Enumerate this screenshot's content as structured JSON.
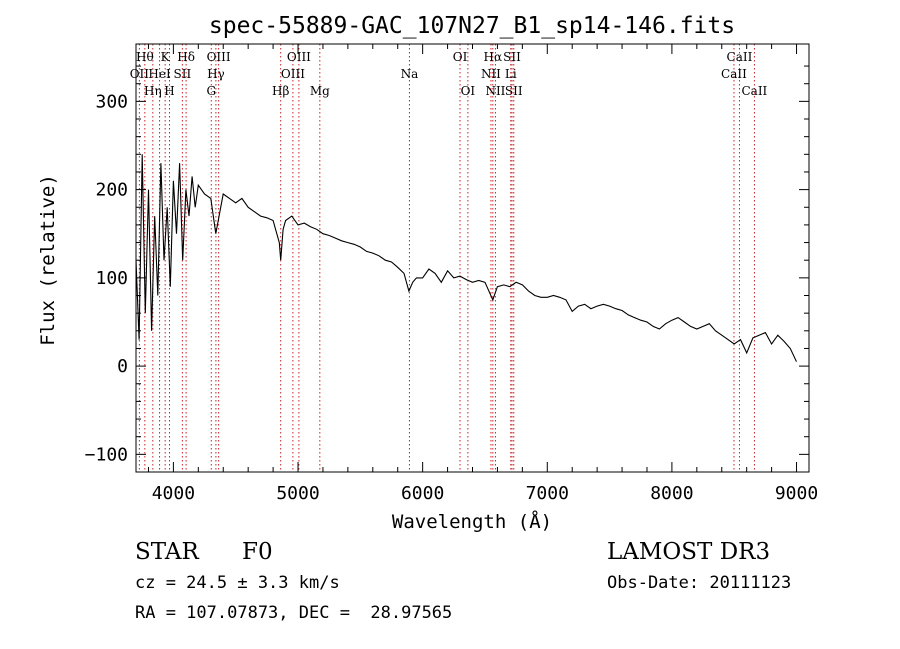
{
  "chart_data": {
    "type": "line",
    "title": "spec-55889-GAC_107N27_B1_sp14-146.fits",
    "xlabel": "Wavelength (Å)",
    "ylabel": "Flux (relative)",
    "xlim": [
      3700,
      9100
    ],
    "ylim": [
      -120,
      365
    ],
    "xticks": [
      4000,
      5000,
      6000,
      7000,
      8000,
      9000
    ],
    "yticks": [
      -100,
      0,
      100,
      200,
      300
    ],
    "grid": false,
    "line_color": "#000000",
    "marker_color": "#cc2222",
    "series": [
      {
        "x": [
          3700,
          3725,
          3750,
          3775,
          3800,
          3825,
          3850,
          3875,
          3900,
          3925,
          3950,
          3975,
          4000,
          4025,
          4050,
          4075,
          4100,
          4125,
          4150,
          4175,
          4200,
          4250,
          4300,
          4340,
          4400,
          4450,
          4500,
          4550,
          4600,
          4650,
          4700,
          4750,
          4800,
          4850,
          4861,
          4880,
          4900,
          4950,
          5000,
          5050,
          5100,
          5150,
          5200,
          5250,
          5300,
          5350,
          5400,
          5450,
          5500,
          5550,
          5600,
          5650,
          5700,
          5750,
          5800,
          5850,
          5890,
          5920,
          5950,
          6000,
          6050,
          6100,
          6150,
          6200,
          6250,
          6300,
          6350,
          6400,
          6450,
          6500,
          6563,
          6600,
          6650,
          6700,
          6750,
          6800,
          6850,
          6900,
          6950,
          7000,
          7050,
          7100,
          7150,
          7200,
          7250,
          7300,
          7350,
          7400,
          7450,
          7500,
          7550,
          7600,
          7650,
          7700,
          7750,
          7800,
          7850,
          7900,
          7950,
          8000,
          8050,
          8100,
          8150,
          8200,
          8250,
          8300,
          8350,
          8400,
          8450,
          8500,
          8550,
          8600,
          8650,
          8700,
          8750,
          8800,
          8850,
          8900,
          8950,
          9000
        ],
        "y": [
          120,
          30,
          240,
          60,
          200,
          40,
          170,
          80,
          230,
          120,
          180,
          90,
          210,
          150,
          230,
          120,
          200,
          170,
          215,
          180,
          205,
          195,
          190,
          150,
          195,
          190,
          185,
          190,
          180,
          175,
          170,
          168,
          165,
          140,
          120,
          155,
          165,
          170,
          160,
          162,
          158,
          155,
          150,
          148,
          145,
          142,
          140,
          138,
          135,
          130,
          128,
          125,
          120,
          118,
          112,
          105,
          85,
          95,
          100,
          100,
          110,
          105,
          95,
          108,
          100,
          102,
          98,
          95,
          97,
          95,
          75,
          90,
          92,
          90,
          95,
          92,
          85,
          80,
          78,
          78,
          80,
          78,
          75,
          62,
          68,
          70,
          65,
          68,
          70,
          68,
          65,
          63,
          58,
          55,
          52,
          50,
          45,
          42,
          48,
          52,
          55,
          50,
          45,
          42,
          45,
          48,
          40,
          35,
          30,
          25,
          30,
          15,
          32,
          35,
          38,
          25,
          35,
          28,
          20,
          5
        ]
      }
    ],
    "lines": [
      {
        "label": "OII",
        "x": 3727,
        "row": 1
      },
      {
        "label": "Hθ",
        "x": 3771,
        "row": 0
      },
      {
        "label": "Hη",
        "x": 3835,
        "row": 2
      },
      {
        "label": "HeI",
        "x": 3889,
        "row": 1
      },
      {
        "label": "K",
        "x": 3934,
        "row": 0
      },
      {
        "label": "H",
        "x": 3969,
        "row": 2
      },
      {
        "label": "Hδ",
        "x": 4102,
        "row": 0
      },
      {
        "label": "SII",
        "x": 4072,
        "row": 1
      },
      {
        "label": "G",
        "x": 4304,
        "row": 2
      },
      {
        "label": "Hγ",
        "x": 4341,
        "row": 1
      },
      {
        "label": "OIII",
        "x": 4363,
        "row": 0
      },
      {
        "label": "Hβ",
        "x": 4861,
        "row": 2
      },
      {
        "label": "OIII",
        "x": 4959,
        "row": 1
      },
      {
        "label": "OIII",
        "x": 5007,
        "row": 0
      },
      {
        "label": "Mg",
        "x": 5175,
        "row": 2
      },
      {
        "label": "Na",
        "x": 5894,
        "row": 1
      },
      {
        "label": "OI",
        "x": 6300,
        "row": 0
      },
      {
        "label": "OI",
        "x": 6363,
        "row": 2
      },
      {
        "label": "NII",
        "x": 6548,
        "row": 1
      },
      {
        "label": "Hα",
        "x": 6563,
        "row": 0
      },
      {
        "label": "NII",
        "x": 6584,
        "row": 2
      },
      {
        "label": "Li",
        "x": 6707,
        "row": 1
      },
      {
        "label": "SII",
        "x": 6717,
        "row": 0
      },
      {
        "label": "SII",
        "x": 6731,
        "row": 2
      },
      {
        "label": "CaII",
        "x": 8498,
        "row": 1
      },
      {
        "label": "CaII",
        "x": 8542,
        "row": 0
      },
      {
        "label": "CaII",
        "x": 8662,
        "row": 2
      }
    ]
  },
  "info": {
    "object_class": "STAR",
    "subclass": "F0",
    "survey": "LAMOST DR3",
    "cz": "cz = 24.5 ± 3.3 km/s",
    "obs_date": "Obs-Date: 20111123",
    "radec": "RA = 107.07873, DEC =  28.97565"
  }
}
